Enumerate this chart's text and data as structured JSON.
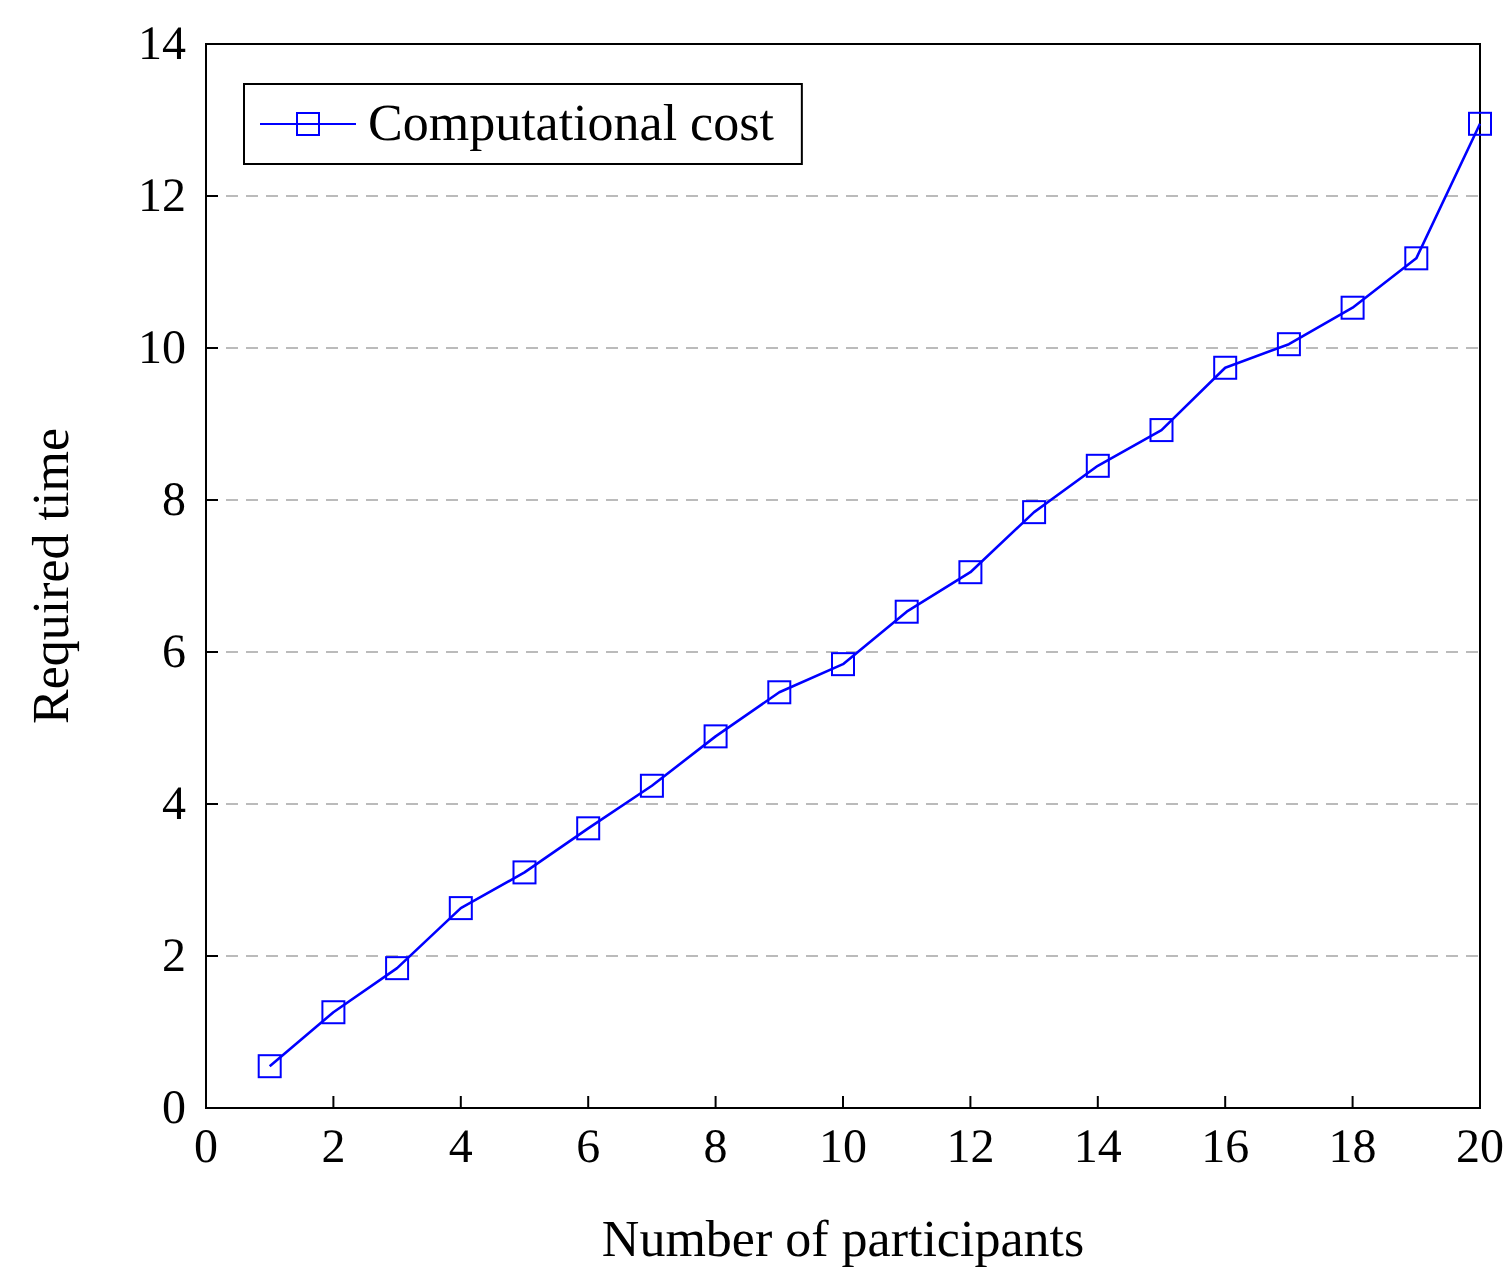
{
  "chart_data": {
    "type": "line",
    "xlabel": "Number of participants",
    "ylabel": "Required time",
    "x": [
      1,
      2,
      3,
      4,
      5,
      6,
      7,
      8,
      9,
      10,
      11,
      12,
      13,
      14,
      15,
      16,
      17,
      18,
      19,
      20
    ],
    "series": [
      {
        "name": "Computational cost",
        "color": "#0000ff",
        "values": [
          0.55,
          1.26,
          1.84,
          2.63,
          3.1,
          3.68,
          4.24,
          4.89,
          5.47,
          5.84,
          6.53,
          7.05,
          7.84,
          8.45,
          8.92,
          9.74,
          10.05,
          10.53,
          11.18,
          12.95
        ]
      }
    ],
    "xlim": [
      0,
      20
    ],
    "xticks": [
      0,
      2,
      4,
      6,
      8,
      10,
      12,
      14,
      16,
      18,
      20
    ],
    "ylim": [
      0,
      14
    ],
    "yticks": [
      0,
      2,
      4,
      6,
      8,
      10,
      12,
      14
    ],
    "grid": "y",
    "legend": "top left",
    "marker": "square",
    "line_style": "solid"
  }
}
